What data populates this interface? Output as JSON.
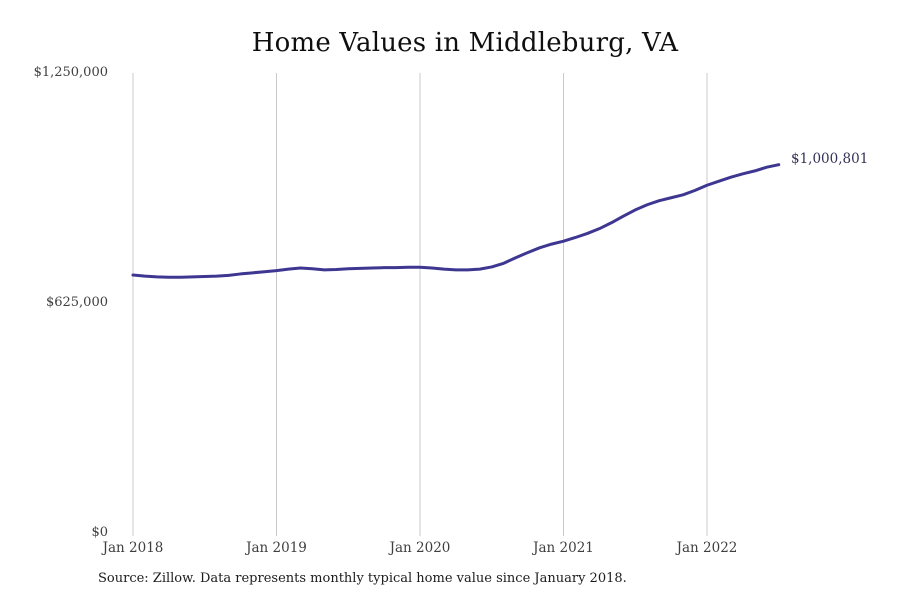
{
  "title": "Home Values in Middleburg, VA",
  "source_note": "Source: Zillow. Data represents monthly typical home value since January 2018.",
  "colors": {
    "line": "#3e3791",
    "end_label": "#333157",
    "grid": "#cbcbcb",
    "tick_text": "#3f3f3f",
    "title_text": "#0f0f0f",
    "background": "#ffffff"
  },
  "chart_data": {
    "type": "line",
    "title": "Home Values in Middleburg, VA",
    "xlabel": "",
    "ylabel": "",
    "unit": "USD",
    "frequency": "monthly",
    "x_start": "Jan 2018",
    "x_end": "Jul 2022",
    "ylim": [
      0,
      1250000
    ],
    "grid": "vertical-only",
    "legend": "none",
    "y_tick_labels": [
      "$0",
      "$625,000",
      "$1,250,000"
    ],
    "y_tick_values": [
      0,
      625000,
      1250000
    ],
    "x_tick_labels": [
      "Jan 2018",
      "Jan 2019",
      "Jan 2020",
      "Jan 2021",
      "Jan 2022"
    ],
    "x_tick_month_indices": [
      0,
      12,
      24,
      36,
      48
    ],
    "end_value": 1000801,
    "end_value_label": "$1,000,801",
    "months": [
      "2018-01",
      "2018-02",
      "2018-03",
      "2018-04",
      "2018-05",
      "2018-06",
      "2018-07",
      "2018-08",
      "2018-09",
      "2018-10",
      "2018-11",
      "2018-12",
      "2019-01",
      "2019-02",
      "2019-03",
      "2019-04",
      "2019-05",
      "2019-06",
      "2019-07",
      "2019-08",
      "2019-09",
      "2019-10",
      "2019-11",
      "2019-12",
      "2020-01",
      "2020-02",
      "2020-03",
      "2020-04",
      "2020-05",
      "2020-06",
      "2020-07",
      "2020-08",
      "2020-09",
      "2020-10",
      "2020-11",
      "2020-12",
      "2021-01",
      "2021-02",
      "2021-03",
      "2021-04",
      "2021-05",
      "2021-06",
      "2021-07",
      "2021-08",
      "2021-09",
      "2021-10",
      "2021-11",
      "2021-12",
      "2022-01",
      "2022-02",
      "2022-03",
      "2022-04",
      "2022-05",
      "2022-06",
      "2022-07"
    ],
    "values": [
      701000,
      698000,
      696000,
      695000,
      695000,
      696000,
      697000,
      698000,
      700000,
      704000,
      707000,
      710000,
      713000,
      717000,
      720000,
      718000,
      715000,
      716000,
      718000,
      719000,
      720000,
      721000,
      721000,
      722000,
      722000,
      720000,
      717000,
      715000,
      715000,
      717000,
      723000,
      733000,
      748000,
      762000,
      775000,
      785000,
      793000,
      803000,
      814000,
      827000,
      843000,
      861000,
      878000,
      892000,
      903000,
      911000,
      919000,
      931000,
      945000,
      956000,
      967000,
      976000,
      984000,
      994000,
      1000801
    ]
  }
}
